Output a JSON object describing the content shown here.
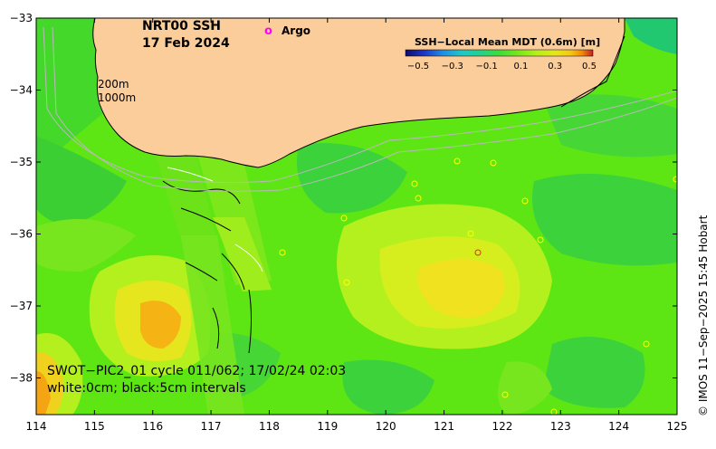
{
  "title": {
    "product": "NRT00 SSH",
    "date": "17 Feb 2024"
  },
  "legend": {
    "argo_symbol": "o",
    "argo_label": "Argo",
    "argo_color": "#ff00ff",
    "isobath_200": "200m",
    "isobath_1000": "1000m"
  },
  "colorbar": {
    "title": "SSH−Local Mean MDT (0.6m) [m]",
    "ticks": [
      "−0.5",
      "−0.3",
      "−0.1",
      "0.1",
      "0.3",
      "0.5"
    ],
    "colors": [
      "#0c0c6e",
      "#1d36c8",
      "#1e8ee6",
      "#1ec8c8",
      "#22d28c",
      "#3cdc3c",
      "#78e61e",
      "#b4f01e",
      "#e6e61e",
      "#f5c814",
      "#f08c0a",
      "#e0501e",
      "#c81e1e"
    ]
  },
  "swot": {
    "line1": "SWOT−PIC2_01 cycle 011/062; 17/02/24 02:03",
    "line2": "white:0cm; black:5cm intervals"
  },
  "axes": {
    "x_ticks": [
      "114",
      "115",
      "116",
      "117",
      "118",
      "119",
      "120",
      "121",
      "122",
      "123",
      "124",
      "125"
    ],
    "y_ticks": [
      "−33",
      "−34",
      "−35",
      "−36",
      "−37",
      "−38"
    ]
  },
  "credit": "© IMOS 11−Sep−2025 15:45 Hobart",
  "colors": {
    "land": "#facd9b",
    "base_green": "#5ee614",
    "dark_green": "#3cd23c",
    "yellow_green": "#b4f01e",
    "yellow": "#f0e61e",
    "orange": "#f5b414"
  }
}
